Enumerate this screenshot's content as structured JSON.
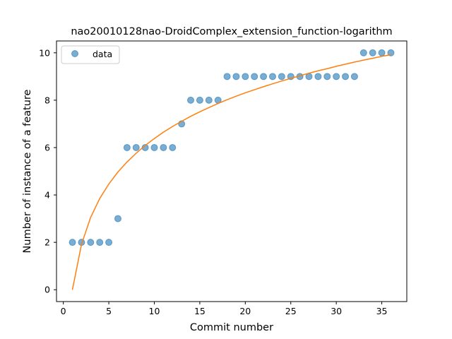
{
  "chart_data": {
    "type": "scatter",
    "title": "nao20010128nao-DroidComplex_extension_function-logarithm",
    "xlabel": "Commit number",
    "ylabel": "Number of instance of a feature",
    "xlim": [
      -0.75,
      37.75
    ],
    "ylim": [
      -0.5,
      10.5
    ],
    "xticks": [
      0,
      5,
      10,
      15,
      20,
      25,
      30,
      35
    ],
    "yticks": [
      0,
      2,
      4,
      6,
      8,
      10
    ],
    "grid": false,
    "legend": {
      "position": "top-left",
      "entries": [
        "data"
      ]
    },
    "series": [
      {
        "name": "data",
        "kind": "scatter",
        "color": "#1f77b4",
        "x": [
          1,
          2,
          3,
          4,
          5,
          6,
          7,
          8,
          9,
          10,
          11,
          12,
          13,
          14,
          15,
          16,
          17,
          18,
          19,
          20,
          21,
          22,
          23,
          24,
          25,
          26,
          27,
          28,
          29,
          30,
          31,
          32,
          33,
          34,
          35,
          36
        ],
        "y": [
          2,
          2,
          2,
          2,
          2,
          3,
          6,
          6,
          6,
          6,
          6,
          6,
          7,
          8,
          8,
          8,
          8,
          9,
          9,
          9,
          9,
          9,
          9,
          9,
          9,
          9,
          9,
          9,
          9,
          9,
          9,
          9,
          10,
          10,
          10,
          10
        ]
      },
      {
        "kind": "line",
        "color": "#ff7f0e",
        "fit": "logarithm",
        "x": [
          1,
          2,
          3,
          4,
          5,
          6,
          7,
          8,
          9,
          10,
          11,
          12,
          13,
          14,
          15,
          16,
          17,
          18,
          19,
          20,
          21,
          22,
          23,
          24,
          25,
          26,
          27,
          28,
          29,
          30,
          31,
          32,
          33,
          34,
          35,
          36
        ],
        "y": [
          0.0,
          1.92,
          3.05,
          3.85,
          4.46,
          4.97,
          5.39,
          5.76,
          6.09,
          6.38,
          6.65,
          6.89,
          7.11,
          7.32,
          7.51,
          7.69,
          7.86,
          8.02,
          8.17,
          8.31,
          8.44,
          8.57,
          8.69,
          8.81,
          8.92,
          9.03,
          9.14,
          9.24,
          9.33,
          9.43,
          9.52,
          9.61,
          9.69,
          9.77,
          9.85,
          9.92
        ]
      }
    ]
  }
}
